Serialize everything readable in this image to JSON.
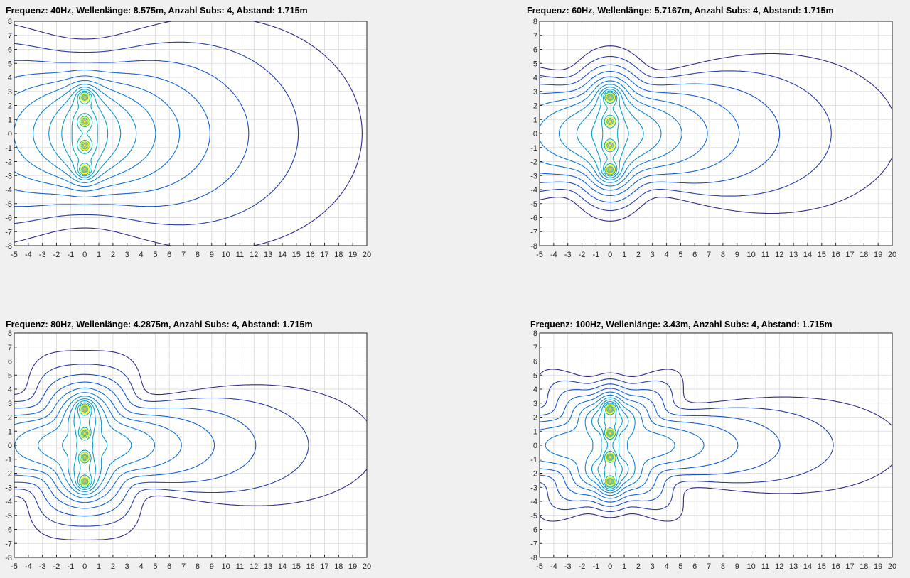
{
  "figure": {
    "background": "#f0f0f0"
  },
  "chart_data": [
    {
      "type": "contour",
      "title": "Frequenz: 40Hz,  Wellenlänge: 8.575m,  Anzahl Subs: 4,  Abstand: 1.715m",
      "frequency_hz": 40,
      "wavelength_m": 8.575,
      "subs": 4,
      "spacing_m": 1.715,
      "sources": [
        {
          "x": 0,
          "y": 2.5725
        },
        {
          "x": 0,
          "y": 0.8575
        },
        {
          "x": 0,
          "y": -0.8575
        },
        {
          "x": 0,
          "y": -2.5725
        }
      ],
      "xlim": [
        -5,
        20
      ],
      "ylim": [
        -8,
        8
      ],
      "xticks": [
        -5,
        -4,
        -3,
        -2,
        -1,
        0,
        1,
        2,
        3,
        4,
        5,
        6,
        7,
        8,
        9,
        10,
        11,
        12,
        13,
        14,
        15,
        16,
        17,
        18,
        19,
        20
      ],
      "yticks": [
        8,
        7,
        6,
        5,
        4,
        3,
        2,
        1,
        0,
        -1,
        -2,
        -3,
        -4,
        -5,
        -6,
        -7,
        -8
      ],
      "grid": true,
      "colormap": "parula"
    },
    {
      "type": "contour",
      "title": "Frequenz: 60Hz,  Wellenlänge: 5.7167m,  Anzahl Subs: 4,  Abstand: 1.715m",
      "frequency_hz": 60,
      "wavelength_m": 5.7167,
      "subs": 4,
      "spacing_m": 1.715,
      "sources": [
        {
          "x": 0,
          "y": 2.5725
        },
        {
          "x": 0,
          "y": 0.8575
        },
        {
          "x": 0,
          "y": -0.8575
        },
        {
          "x": 0,
          "y": -2.5725
        }
      ],
      "xlim": [
        -5,
        20
      ],
      "ylim": [
        -8,
        8
      ],
      "xticks": [
        -5,
        -4,
        -3,
        -2,
        -1,
        0,
        1,
        2,
        3,
        4,
        5,
        6,
        7,
        8,
        9,
        10,
        11,
        12,
        13,
        14,
        15,
        16,
        17,
        18,
        19,
        20
      ],
      "yticks": [
        8,
        7,
        6,
        5,
        4,
        3,
        2,
        1,
        0,
        -1,
        -2,
        -3,
        -4,
        -5,
        -6,
        -7,
        -8
      ],
      "grid": true,
      "colormap": "parula"
    },
    {
      "type": "contour",
      "title": "Frequenz: 80Hz,  Wellenlänge: 4.2875m,  Anzahl Subs: 4,  Abstand: 1.715m",
      "frequency_hz": 80,
      "wavelength_m": 4.2875,
      "subs": 4,
      "spacing_m": 1.715,
      "sources": [
        {
          "x": 0,
          "y": 2.5725
        },
        {
          "x": 0,
          "y": 0.8575
        },
        {
          "x": 0,
          "y": -0.8575
        },
        {
          "x": 0,
          "y": -2.5725
        }
      ],
      "xlim": [
        -5,
        20
      ],
      "ylim": [
        -8,
        8
      ],
      "xticks": [
        -5,
        -4,
        -3,
        -2,
        -1,
        0,
        1,
        2,
        3,
        4,
        5,
        6,
        7,
        8,
        9,
        10,
        11,
        12,
        13,
        14,
        15,
        16,
        17,
        18,
        19,
        20
      ],
      "yticks": [
        8,
        7,
        6,
        5,
        4,
        3,
        2,
        1,
        0,
        -1,
        -2,
        -3,
        -4,
        -5,
        -6,
        -7,
        -8
      ],
      "grid": true,
      "colormap": "parula"
    },
    {
      "type": "contour",
      "title": "Frequenz: 100Hz,  Wellenlänge: 3.43m,  Anzahl Subs: 4,  Abstand: 1.715m",
      "frequency_hz": 100,
      "wavelength_m": 3.43,
      "subs": 4,
      "spacing_m": 1.715,
      "sources": [
        {
          "x": 0,
          "y": 2.5725
        },
        {
          "x": 0,
          "y": 0.8575
        },
        {
          "x": 0,
          "y": -0.8575
        },
        {
          "x": 0,
          "y": -2.5725
        }
      ],
      "xlim": [
        -5,
        20
      ],
      "ylim": [
        -8,
        8
      ],
      "xticks": [
        -5,
        -4,
        -3,
        -2,
        -1,
        0,
        1,
        2,
        3,
        4,
        5,
        6,
        7,
        8,
        9,
        10,
        11,
        12,
        13,
        14,
        15,
        16,
        17,
        18,
        19,
        20
      ],
      "yticks": [
        8,
        7,
        6,
        5,
        4,
        3,
        2,
        1,
        0,
        -1,
        -2,
        -3,
        -4,
        -5,
        -6,
        -7,
        -8
      ],
      "grid": true,
      "colormap": "parula"
    }
  ]
}
